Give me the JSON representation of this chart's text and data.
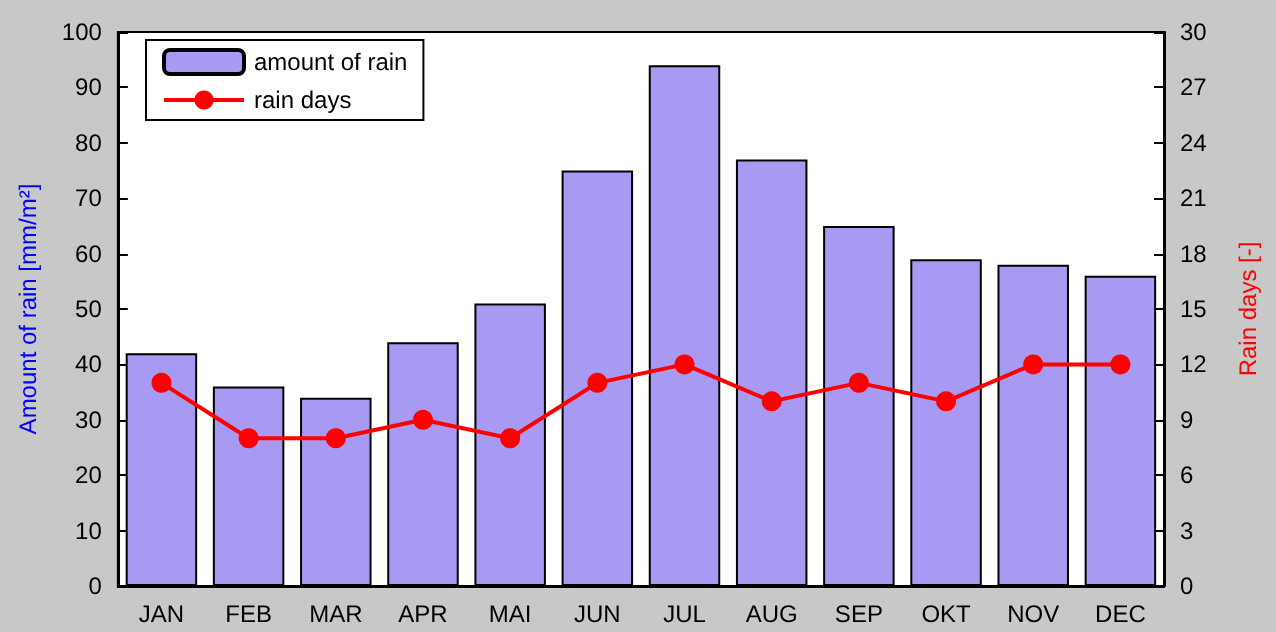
{
  "chart_data": {
    "type": "bar",
    "categories": [
      "JAN",
      "FEB",
      "MAR",
      "APR",
      "MAI",
      "JUN",
      "JUL",
      "AUG",
      "SEP",
      "OKT",
      "NOV",
      "DEC"
    ],
    "ylabel": "Amount of rain [mm/m²]",
    "y2label": "Rain days [-]",
    "series": [
      {
        "name": "amount of rain",
        "color": "#a899f2",
        "values": [
          42,
          36,
          34,
          44,
          51,
          75,
          94,
          77,
          65,
          59,
          58,
          56
        ]
      },
      {
        "name": "rain days",
        "type": "line",
        "axis": "y2",
        "color": "#ff0000",
        "values": [
          11,
          8,
          8,
          9,
          8,
          11,
          12,
          10,
          11,
          10,
          12,
          12
        ]
      }
    ],
    "ylim": [
      0,
      100
    ],
    "yticks": [
      0,
      10,
      20,
      30,
      40,
      50,
      60,
      70,
      80,
      90,
      100
    ],
    "y2lim": [
      0,
      30
    ],
    "y2ticks": [
      0,
      3,
      6,
      9,
      12,
      15,
      18,
      21,
      24,
      27,
      30
    ],
    "grid": false,
    "legend": "top left",
    "marker": "circle",
    "line_style": "solid"
  }
}
